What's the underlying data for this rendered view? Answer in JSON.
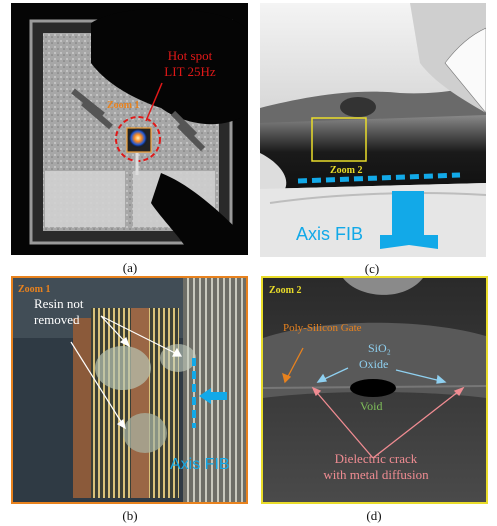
{
  "panel_a": {
    "caption": "(a)",
    "hotspot_label_line1": "Hot spot",
    "hotspot_label_line2": "LIT 25Hz",
    "zoom_label": "Zoom 1"
  },
  "panel_b": {
    "caption": "(b)",
    "zoom_label": "Zoom 1",
    "resin_line1": "Resin not",
    "resin_line2": "removed",
    "axis_label": "Axis FIB"
  },
  "panel_c": {
    "caption": "(c)",
    "zoom_label": "Zoom 2",
    "axis_label": "Axis FIB"
  },
  "panel_d": {
    "caption": "(d)",
    "zoom_label": "Zoom 2",
    "poly_label": "Poly-Silicon Gate",
    "sio2_label": "SiO₂",
    "oxide_label": "Oxide",
    "void_label": "Void",
    "crack_line1": "Dielectric crack",
    "crack_line2": "with metal diffusion"
  },
  "colors": {
    "red": "#e01818",
    "orange": "#e8821e",
    "yellow": "#e9dc2a",
    "cyan": "#12a9e8",
    "pink": "#f08c92",
    "green": "#7fbf5a",
    "lightblue": "#8fd0f0"
  }
}
